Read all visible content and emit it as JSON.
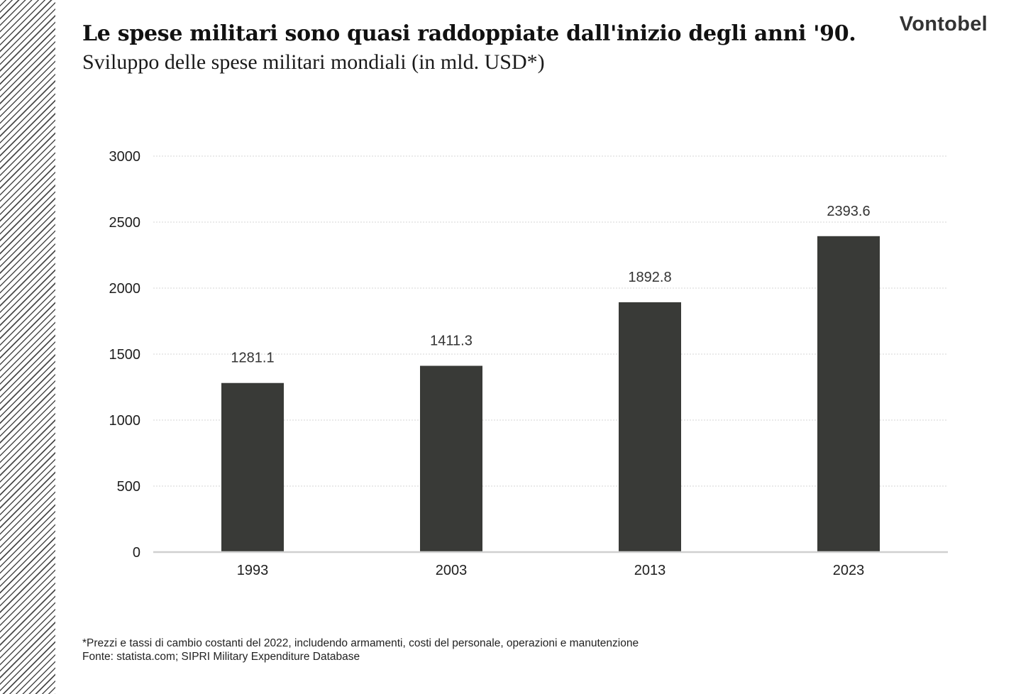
{
  "header": {
    "title": "Le spese militari sono quasi raddoppiate dall'inizio degli anni '90.",
    "subtitle": "Sviluppo delle spese militari mondiali (in mld. USD*)",
    "logo": "Vontobel"
  },
  "footer": {
    "note": "*Prezzi e tassi di cambio costanti del 2022, includendo armamenti, costi del personale, operazioni e manutenzione",
    "source": "Fonte: statista.com; SIPRI Military Expenditure Database"
  },
  "colors": {
    "bar": "#393a37",
    "grid": "#d4d4d4",
    "axis": "#d0d0d0",
    "text": "#1e1e1e",
    "label": "#333333"
  },
  "chart_data": {
    "type": "bar",
    "categories": [
      "1993",
      "2003",
      "2013",
      "2023"
    ],
    "values": [
      1281.1,
      1411.3,
      1892.8,
      2393.6
    ],
    "value_labels": [
      "1281.1",
      "1411.3",
      "1892.8",
      "2393.6"
    ],
    "yticks": [
      "0",
      "500",
      "1000",
      "1500",
      "2000",
      "2500",
      "3000"
    ],
    "ylim": [
      0,
      3000
    ],
    "title": "Le spese militari sono quasi raddoppiate dall'inizio degli anni '90.",
    "xlabel": "",
    "ylabel": "",
    "grid": true
  }
}
